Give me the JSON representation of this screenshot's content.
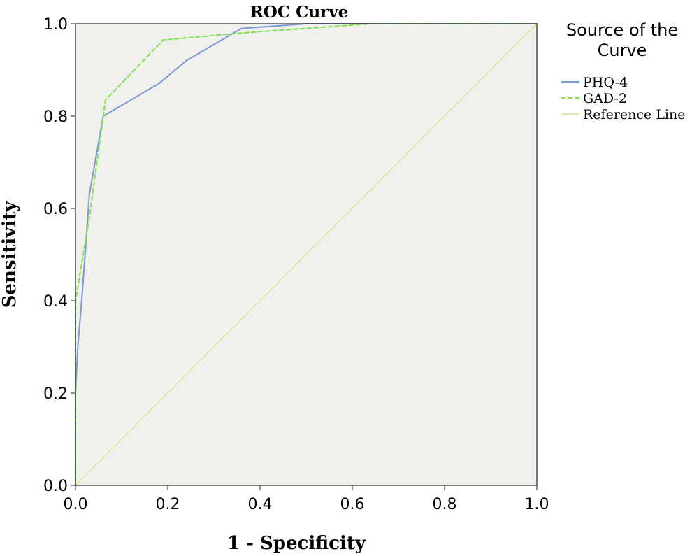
{
  "chart_data": {
    "type": "line",
    "title": "ROC Curve",
    "xlabel": "1 - Specificity",
    "ylabel": "Sensitivity",
    "xlim": [
      0,
      1
    ],
    "ylim": [
      0,
      1
    ],
    "xticks": [
      "0.0",
      "0.2",
      "0.4",
      "0.6",
      "0.8",
      "1.0"
    ],
    "yticks": [
      "0.0",
      "0.2",
      "0.4",
      "0.6",
      "0.8",
      "1.0"
    ],
    "grid": false,
    "background_color": "#f0f0ec",
    "legend": {
      "title": "Source of the Curve",
      "title_lines": [
        "Source of the",
        "Curve"
      ],
      "placement": "right"
    },
    "series": [
      {
        "name": "PHQ-4",
        "color": "#7e97d8",
        "style": "solid",
        "x": [
          0.0,
          0.0,
          0.005,
          0.015,
          0.03,
          0.06,
          0.18,
          0.24,
          0.36,
          0.5,
          1.0
        ],
        "y": [
          0.0,
          0.2,
          0.3,
          0.42,
          0.63,
          0.8,
          0.87,
          0.92,
          0.99,
          1.0,
          1.0
        ]
      },
      {
        "name": "GAD-2",
        "color": "#7fe34f",
        "style": "dashed",
        "x": [
          0.0,
          0.0,
          0.03,
          0.065,
          0.19,
          0.36,
          0.64,
          1.0
        ],
        "y": [
          0.0,
          0.4,
          0.58,
          0.835,
          0.965,
          0.98,
          1.0,
          1.0
        ]
      },
      {
        "name": "Reference Line",
        "color": "#e6e4b0",
        "style": "solid",
        "x": [
          0,
          1
        ],
        "y": [
          0,
          1
        ]
      }
    ]
  }
}
